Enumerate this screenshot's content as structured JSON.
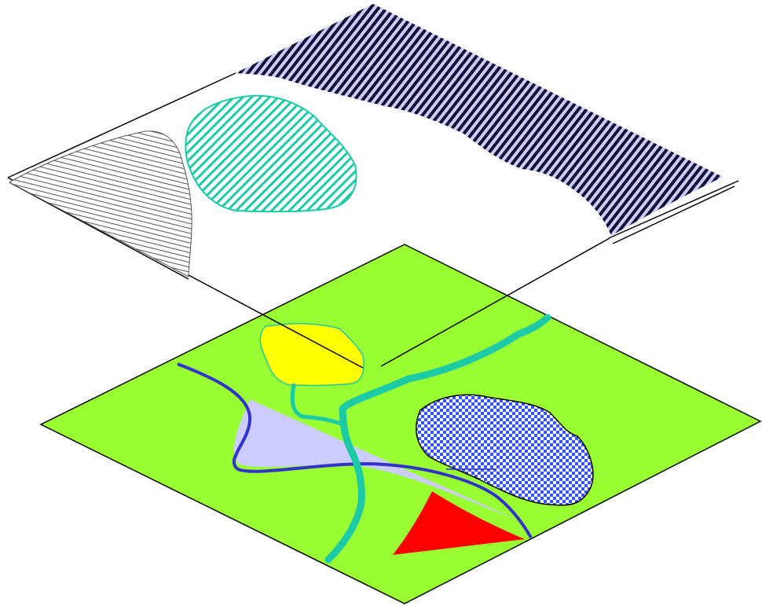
{
  "diagram": {
    "description_visible_text": "",
    "colors": {
      "background": "#ffffff",
      "base_layer_fill": "#99ff33",
      "yellow_region": "#ffff00",
      "yellow_region_outline": "#1ccaa6",
      "red_region": "#ff0000",
      "water_lavender": "#ccccff",
      "river_blue": "#3333cc",
      "stream_teal": "#1ccaa6",
      "checker_blue": "#3355ff",
      "stripe_dark": "#111133",
      "outline": "#000000"
    },
    "layers": [
      {
        "name": "upper-layer",
        "fill": "none"
      },
      {
        "name": "base-layer",
        "fill": "#99ff33"
      }
    ]
  }
}
